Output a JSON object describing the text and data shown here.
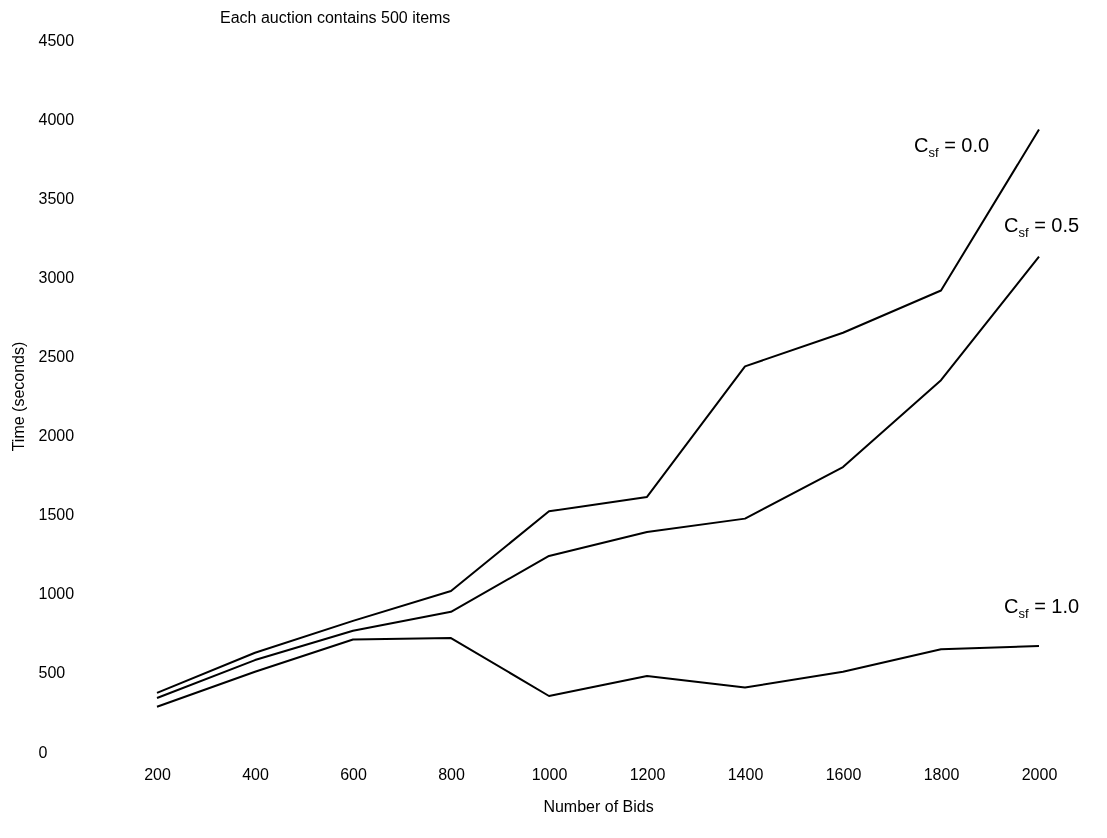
{
  "chart_data": {
    "type": "line",
    "title": "Each auction contains 500 items",
    "xlabel": "Number of Bids",
    "ylabel": "Time (seconds)",
    "x": [
      200,
      400,
      600,
      800,
      1000,
      1200,
      1400,
      1600,
      1800,
      2000
    ],
    "series": [
      {
        "name": "C$_{sf}$ = 0.0",
        "color": "#000000",
        "values": [
          374,
          627,
          829,
          1018,
          1521,
          1612,
          2437,
          2650,
          2917,
          3934
        ]
      },
      {
        "name": "C$_{sf}$ = 0.5",
        "color": "#000000",
        "values": [
          341,
          581,
          766,
          886,
          1239,
          1391,
          1475,
          1801,
          2350,
          3131
        ]
      },
      {
        "name": "C$_{sf}$ = 1.0",
        "color": "#000000",
        "values": [
          286,
          507,
          711,
          720,
          354,
          480,
          408,
          507,
          650,
          670
        ]
      }
    ],
    "xlim": [
      200,
      2000
    ],
    "xticks": [
      200,
      400,
      600,
      800,
      1000,
      1200,
      1400,
      1600,
      1800,
      2000
    ],
    "ylim": [
      0,
      4500
    ],
    "yticks": [
      0,
      500,
      1000,
      1500,
      2000,
      2500,
      3000,
      3500,
      4000,
      4500
    ],
    "grid": false,
    "legend": false,
    "marker": "none",
    "line_style": "solid"
  }
}
